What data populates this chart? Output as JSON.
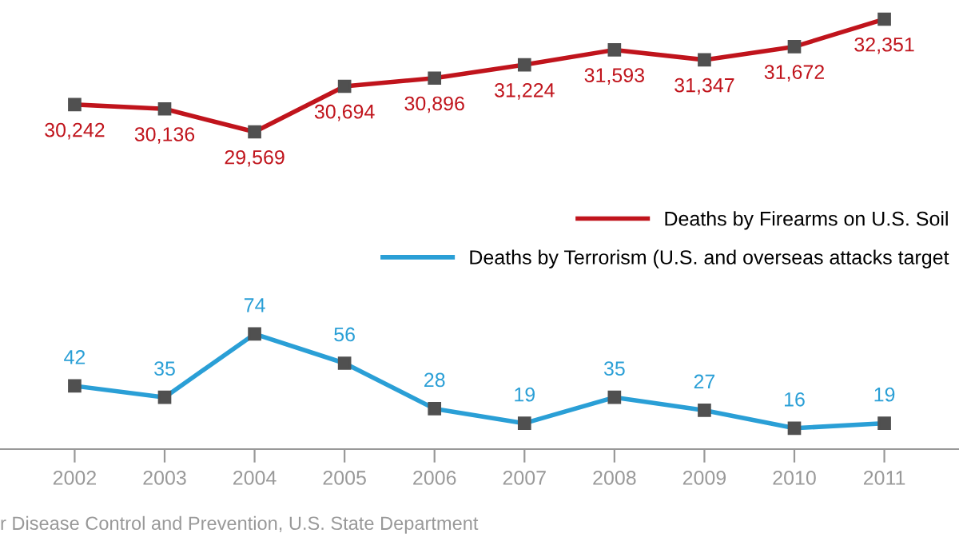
{
  "chart_data": [
    {
      "type": "line",
      "categories": [
        "2002",
        "2003",
        "2004",
        "2005",
        "2006",
        "2007",
        "2008",
        "2009",
        "2010",
        "2011"
      ],
      "series": [
        {
          "name": "Deaths by Firearms on U.S. Soil",
          "color": "#c0141c",
          "values": [
            30242,
            30136,
            29569,
            30694,
            30896,
            31224,
            31593,
            31347,
            31672,
            32351
          ],
          "value_labels": [
            "30,242",
            "30,136",
            "29,569",
            "30,694",
            "30,896",
            "31,224",
            "31,593",
            "31,347",
            "31,672",
            "32,351"
          ]
        }
      ],
      "marker": "square",
      "legend": "bottom right",
      "tick_labels": false
    },
    {
      "type": "line",
      "categories": [
        "2002",
        "2003",
        "2004",
        "2005",
        "2006",
        "2007",
        "2008",
        "2009",
        "2010",
        "2011"
      ],
      "series": [
        {
          "name": "Deaths by Terrorism (U.S. and overseas attacks target",
          "color": "#2a9fd6",
          "values": [
            42,
            35,
            74,
            56,
            28,
            19,
            35,
            27,
            16,
            19
          ],
          "value_labels": [
            "42",
            "35",
            "74",
            "56",
            "28",
            "19",
            "35",
            "27",
            "16",
            "19"
          ]
        }
      ],
      "marker": "square",
      "legend": "top right",
      "tick_labels": "x",
      "annotations": [
        "r Disease Control and Prevention, U.S. State Department"
      ]
    }
  ]
}
